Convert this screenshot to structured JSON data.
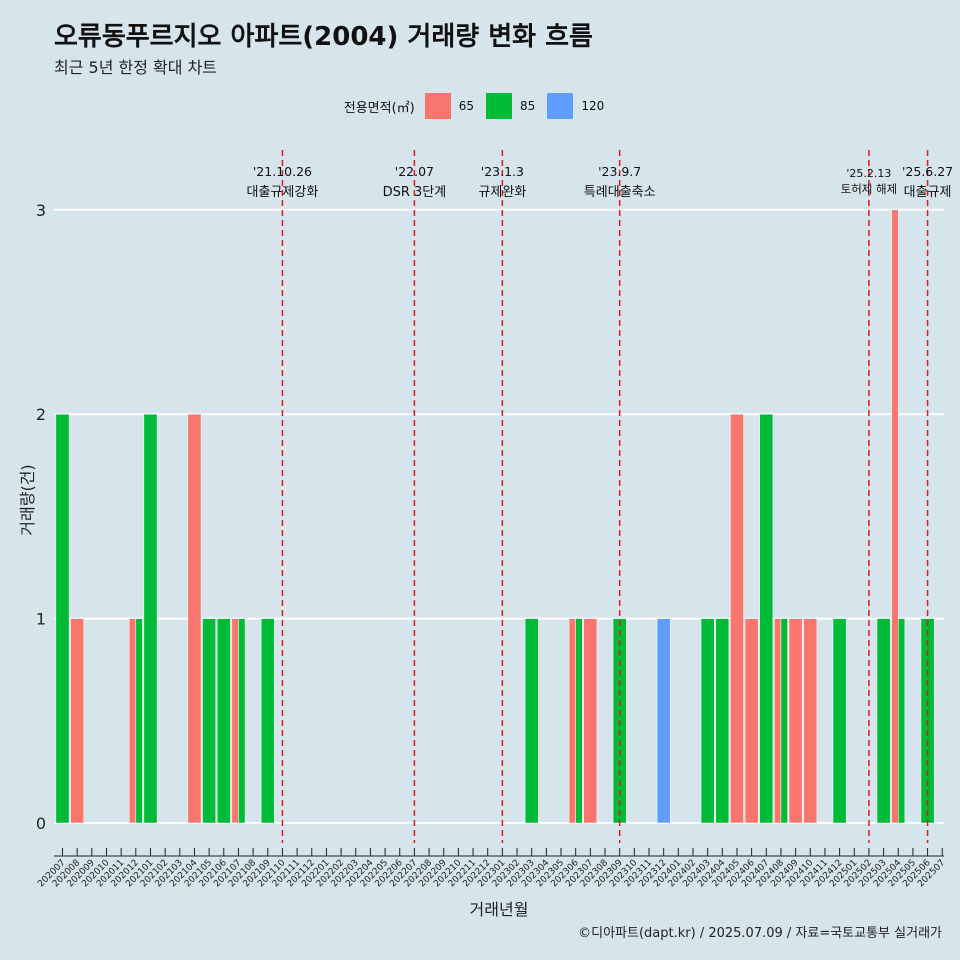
{
  "title": "오류동푸르지오 아파트(2004) 거래량 변화 흐름",
  "subtitle": "최근 5년 한정 확대 차트",
  "caption": "©디아파트(dapt.kr) / 2025.07.09 / 자료=국토교통부 실거래가",
  "legend": {
    "title": "전용면적(㎡)",
    "items": [
      {
        "label": "65",
        "color": "#f8766d"
      },
      {
        "label": "85",
        "color": "#00ba38"
      },
      {
        "label": "120",
        "color": "#619cff"
      }
    ]
  },
  "chart_data": {
    "type": "bar",
    "stacked": false,
    "title": "오류동푸르지오 아파트(2004) 거래량 변화 흐름",
    "xlabel": "거래년월",
    "ylabel": "거래량(건)",
    "ylim": [
      0,
      3
    ],
    "yticks": [
      0,
      1,
      2,
      3
    ],
    "categories": [
      "202007",
      "202008",
      "202009",
      "202010",
      "202011",
      "202012",
      "202101",
      "202102",
      "202103",
      "202104",
      "202105",
      "202106",
      "202107",
      "202108",
      "202109",
      "202110",
      "202111",
      "202112",
      "202201",
      "202202",
      "202203",
      "202204",
      "202205",
      "202206",
      "202207",
      "202208",
      "202209",
      "202210",
      "202211",
      "202212",
      "202301",
      "202302",
      "202303",
      "202304",
      "202305",
      "202306",
      "202307",
      "202308",
      "202309",
      "202310",
      "202311",
      "202312",
      "202401",
      "202402",
      "202403",
      "202404",
      "202405",
      "202406",
      "202407",
      "202408",
      "202409",
      "202410",
      "202411",
      "202412",
      "202501",
      "202502",
      "202503",
      "202504",
      "202505",
      "202506",
      "202507"
    ],
    "bars": [
      {
        "month": "202007",
        "series": "85",
        "value": 2
      },
      {
        "month": "202008",
        "series": "65",
        "value": 1
      },
      {
        "month": "202012",
        "series": "65",
        "value": 1
      },
      {
        "month": "202012",
        "series": "85",
        "value": 1
      },
      {
        "month": "202101",
        "series": "85",
        "value": 2
      },
      {
        "month": "202104",
        "series": "65",
        "value": 2
      },
      {
        "month": "202105",
        "series": "85",
        "value": 1
      },
      {
        "month": "202106",
        "series": "85",
        "value": 1
      },
      {
        "month": "202107",
        "series": "65",
        "value": 1
      },
      {
        "month": "202107",
        "series": "85",
        "value": 1
      },
      {
        "month": "202109",
        "series": "85",
        "value": 1
      },
      {
        "month": "202303",
        "series": "85",
        "value": 1
      },
      {
        "month": "202306",
        "series": "65",
        "value": 1
      },
      {
        "month": "202306",
        "series": "85",
        "value": 1
      },
      {
        "month": "202307",
        "series": "65",
        "value": 1
      },
      {
        "month": "202309",
        "series": "85",
        "value": 1
      },
      {
        "month": "202312",
        "series": "120",
        "value": 1
      },
      {
        "month": "202403",
        "series": "85",
        "value": 1
      },
      {
        "month": "202404",
        "series": "85",
        "value": 1
      },
      {
        "month": "202405",
        "series": "65",
        "value": 2
      },
      {
        "month": "202406",
        "series": "65",
        "value": 1
      },
      {
        "month": "202407",
        "series": "85",
        "value": 2
      },
      {
        "month": "202408",
        "series": "65",
        "value": 1
      },
      {
        "month": "202408",
        "series": "85",
        "value": 1
      },
      {
        "month": "202409",
        "series": "65",
        "value": 1
      },
      {
        "month": "202410",
        "series": "65",
        "value": 1
      },
      {
        "month": "202412",
        "series": "85",
        "value": 1
      },
      {
        "month": "202503",
        "series": "85",
        "value": 1
      },
      {
        "month": "202504",
        "series": "65",
        "value": 3
      },
      {
        "month": "202504",
        "series": "85",
        "value": 1
      },
      {
        "month": "202506",
        "series": "85",
        "value": 1
      }
    ],
    "events": [
      {
        "date": "'21.10.26",
        "label": "대출규제강화",
        "month": "202110",
        "x": 15.0
      },
      {
        "date": "'22.07",
        "label": "DSR 3단계",
        "month": "202207",
        "x": 24.0
      },
      {
        "date": "'23.1.3",
        "label": "규제완화",
        "month": "202301",
        "x": 30.0
      },
      {
        "date": "'23.9.7",
        "label": "특례대출축소",
        "month": "202309",
        "x": 38.0
      },
      {
        "date": "'25.2.13",
        "label": "토허제 해제",
        "month": "202502",
        "x": 55.0
      },
      {
        "date": "'25.6.27",
        "label": "대출규제",
        "month": "202506",
        "x": 59.0
      }
    ]
  }
}
